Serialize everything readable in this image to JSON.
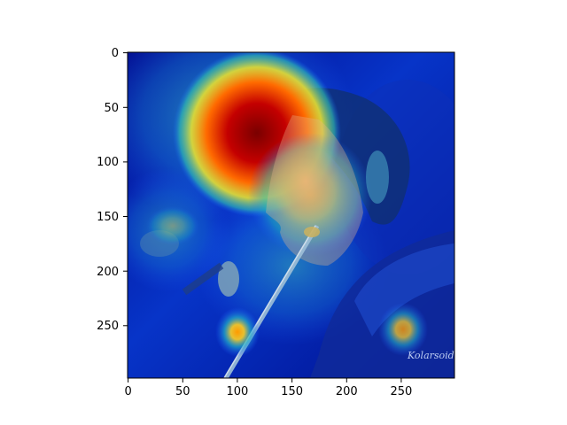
{
  "figure": {
    "axes": {
      "x_ticks": [
        0,
        50,
        100,
        150,
        200,
        250
      ],
      "y_ticks": [
        0,
        50,
        100,
        150,
        200,
        250
      ],
      "x_range": [
        0,
        299
      ],
      "y_range": [
        0,
        299
      ],
      "y_inverted": true,
      "x_tick_labels": [
        "0",
        "50",
        "100",
        "150",
        "200",
        "250"
      ],
      "y_tick_labels": [
        "0",
        "50",
        "100",
        "150",
        "200",
        "250"
      ]
    },
    "image": {
      "kind": "attention-heatmap-overlay",
      "colormap": "jet",
      "watermark_text": "Kolarsoid"
    },
    "colors": {
      "cold": "#00007f",
      "cool": "#0044ff",
      "mid": "#1fb3b3",
      "warm": "#e8d23a",
      "hot": "#9a0000"
    }
  }
}
